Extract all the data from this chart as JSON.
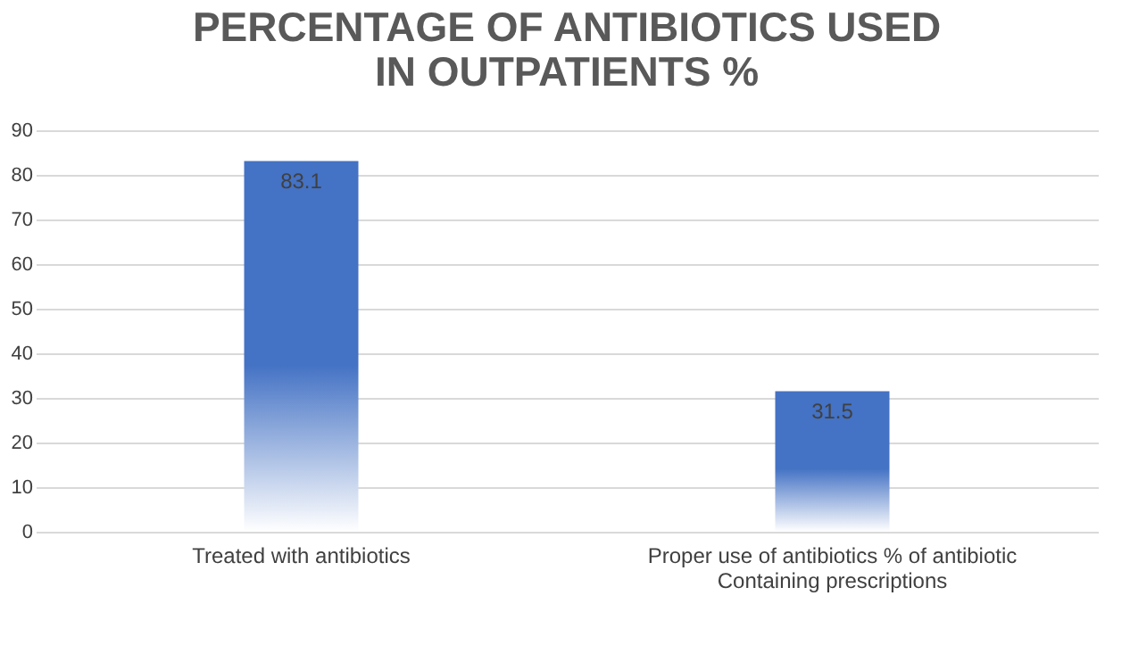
{
  "chart_data": {
    "type": "bar",
    "title": "PERCENTAGE OF ANTIBIOTICS USED IN OUTPATIENTS %",
    "categories": [
      "Treated with antibiotics",
      "Proper use of antibiotics % of antibiotic Containing prescriptions"
    ],
    "values": [
      83.1,
      31.5
    ],
    "color": "#4472c4",
    "ylim": [
      0,
      90
    ],
    "yticks": [
      0,
      10,
      20,
      30,
      40,
      50,
      60,
      70,
      80,
      90
    ],
    "grid": "y",
    "data_labels": true
  }
}
